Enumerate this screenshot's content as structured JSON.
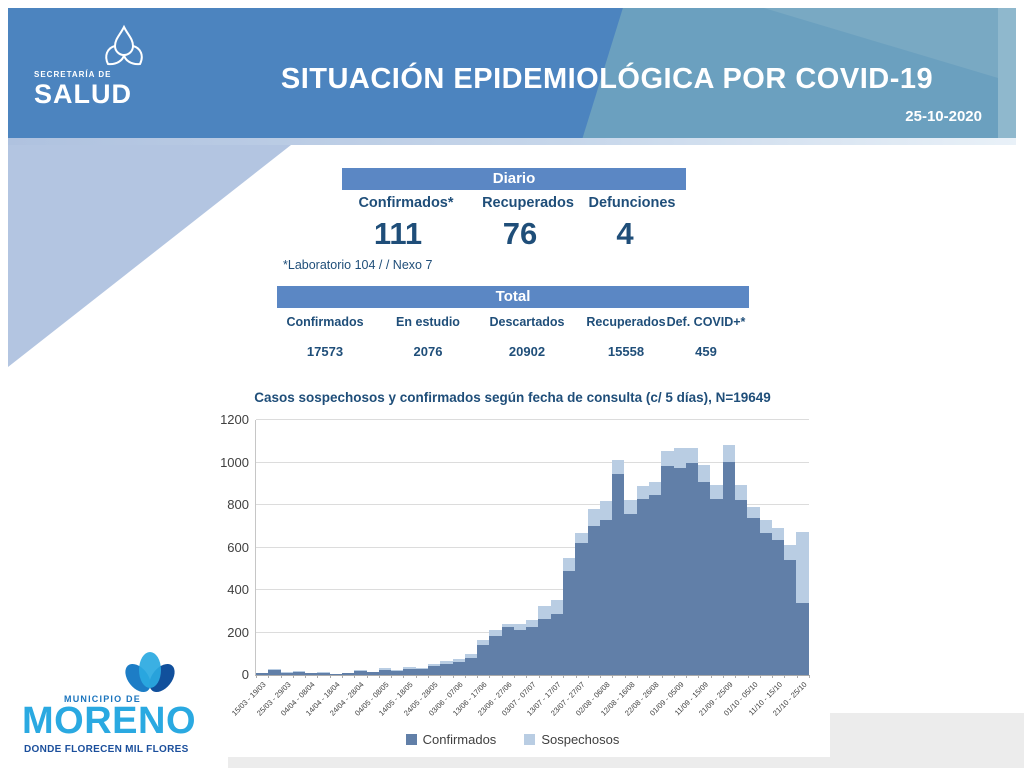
{
  "header": {
    "org_small": "SECRETARÍA DE",
    "org_big": "SALUD",
    "title": "SITUACIÓN EPIDEMIOLÓGICA POR COVID-19",
    "date": "25-10-2020"
  },
  "diario": {
    "title": "Diario",
    "columns": [
      {
        "label": "Confirmados*",
        "value": "111"
      },
      {
        "label": "Recuperados",
        "value": "76"
      },
      {
        "label": "Defunciones",
        "value": "4"
      }
    ],
    "footnote": "*Laboratorio 104 / / Nexo 7"
  },
  "total": {
    "title": "Total",
    "columns": [
      {
        "label": "Confirmados",
        "value": "17573"
      },
      {
        "label": "En estudio",
        "value": "2076"
      },
      {
        "label": "Descartados",
        "value": "20902"
      },
      {
        "label": "Recuperados",
        "value": "15558"
      },
      {
        "label": "Def. COVID+*",
        "value": "459"
      }
    ]
  },
  "chart_data": {
    "type": "bar",
    "stacked": true,
    "title": "Casos sospechosos y confirmados según fecha de consulta (c/ 5 días), N=19649",
    "xlabel": "",
    "ylabel": "",
    "ylim": [
      0,
      1200
    ],
    "yticks": [
      0,
      200,
      400,
      600,
      800,
      1000,
      1200
    ],
    "grid": true,
    "legend_position": "bottom",
    "bin_days": 5,
    "x_tick_labels": [
      "15/03 - 19/03",
      "25/03 - 29/03",
      "04/04 - 08/04",
      "14/04 - 18/04",
      "24/04 - 28/04",
      "04/05 - 08/05",
      "14/05 - 18/05",
      "24/05 - 28/05",
      "03/06 - 07/06",
      "13/06 - 17/06",
      "23/06 - 27/06",
      "03/07 - 07/07",
      "13/07 - 17/07",
      "23/07 - 27/07",
      "02/08 - 06/08",
      "12/08 - 16/08",
      "22/08 - 26/08",
      "01/09 - 05/09",
      "11/09 - 15/09",
      "21/09 - 25/09",
      "01/10 - 05/10",
      "11/10 - 15/10",
      "21/10 - 25/10"
    ],
    "series": [
      {
        "name": "Confirmados",
        "color": "#617FA8",
        "values": [
          8,
          22,
          10,
          15,
          8,
          10,
          5,
          8,
          20,
          12,
          25,
          18,
          30,
          26,
          42,
          52,
          62,
          80,
          140,
          185,
          225,
          212,
          228,
          262,
          288,
          490,
          620,
          700,
          730,
          945,
          760,
          828,
          845,
          985,
          975,
          1000,
          910,
          830,
          1002,
          824,
          737,
          667,
          635,
          541,
          337
        ]
      },
      {
        "name": "Sospechosos",
        "color": "#B9CDE3",
        "values": [
          2,
          4,
          3,
          4,
          2,
          3,
          2,
          3,
          5,
          4,
          6,
          5,
          8,
          8,
          10,
          12,
          15,
          20,
          25,
          25,
          15,
          28,
          30,
          65,
          65,
          60,
          47,
          80,
          90,
          65,
          65,
          62,
          65,
          70,
          95,
          70,
          78,
          64,
          80,
          70,
          55,
          62,
          55,
          71,
          337
        ]
      }
    ]
  },
  "footer_logo": {
    "small": "MUNICIPIO DE",
    "big": "MORENO",
    "tagline": "DONDE FLORECEN MIL FLORES"
  },
  "colors": {
    "navy_text": "#1F4E79",
    "table_header": "#5B87C4",
    "bar_confirmed": "#617FA8",
    "bar_suspected": "#B9CDE3",
    "header_base": "#4C84BF",
    "header_steel": "#6BA0BF",
    "header_strip": "#8FB8CD",
    "left_triangle": "#B3C5E1",
    "gray_band": "#ECECEC",
    "moreno_cyan": "#2AA9E1",
    "moreno_dark": "#1B4F9C"
  }
}
